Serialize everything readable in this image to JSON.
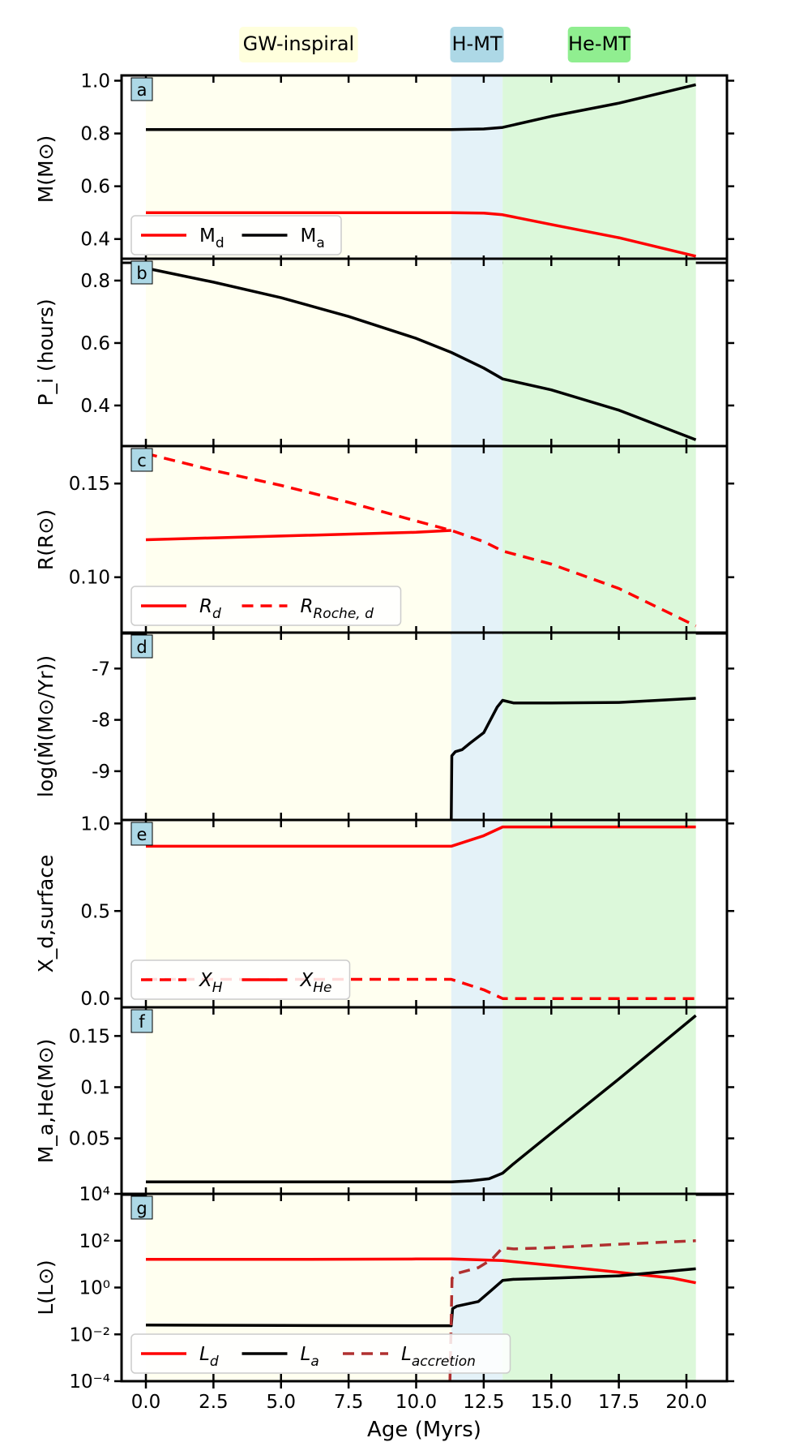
{
  "colors": {
    "red": "#ff0000",
    "black": "#000000",
    "brown": "#b03030",
    "gw_bg": "#fffff0",
    "hmt_bg": "#e4f2f8",
    "hemt_bg": "#dcf8da",
    "gw_label_bg": "#ffffdd",
    "hmt_label_bg": "#add8e6",
    "hemt_label_bg": "#90ee90",
    "panel_tag_bg": "#add8e6"
  },
  "phases": [
    {
      "label": "GW-inspiral",
      "x0": 0.0,
      "x1": 11.3,
      "color": "#fffff0",
      "label_color": "#ffffdd"
    },
    {
      "label": "H-MT",
      "x0": 11.3,
      "x1": 13.2,
      "color": "#e4f2f8",
      "label_color": "#add8e6"
    },
    {
      "label": "He-MT",
      "x0": 13.2,
      "x1": 20.35,
      "color": "#dcf8da",
      "label_color": "#90ee90"
    }
  ],
  "chart_data": {
    "type": "line",
    "xlabel": "Age (Myrs)",
    "xlim": [
      -0.9,
      21.5
    ],
    "xticks": [
      0.0,
      2.5,
      5.0,
      7.5,
      10.0,
      12.5,
      15.0,
      17.5,
      20.0
    ],
    "xtick_labels": [
      "0.0",
      "2.5",
      "5.0",
      "7.5",
      "10.0",
      "12.5",
      "15.0",
      "17.5",
      "20.0"
    ],
    "panels": [
      {
        "tag": "a",
        "ylabel": "M(M⊙)",
        "ylim": [
          0.31,
          1.02
        ],
        "yticks": [
          0.4,
          0.6,
          0.8,
          1.0
        ],
        "ytick_labels": [
          "0.4",
          "0.6",
          "0.8",
          "1.0"
        ],
        "series": [
          {
            "name": "Md",
            "color": "#ff0000",
            "dash": "solid",
            "x": [
              0,
              5,
              10,
              11.3,
              12.5,
              13.2,
              15,
              17.5,
              20.35
            ],
            "y": [
              0.5,
              0.5,
              0.5,
              0.5,
              0.498,
              0.492,
              0.455,
              0.405,
              0.335
            ]
          },
          {
            "name": "Ma",
            "color": "#000000",
            "dash": "solid",
            "x": [
              0,
              5,
              10,
              11.3,
              12.5,
              13.2,
              15,
              17.5,
              20.35
            ],
            "y": [
              0.815,
              0.815,
              0.815,
              0.815,
              0.817,
              0.823,
              0.865,
              0.915,
              0.985
            ]
          }
        ],
        "legend": [
          {
            "label": "M",
            "sub": "d",
            "color": "#ff0000",
            "dash": "solid"
          },
          {
            "label": "M",
            "sub": "a",
            "color": "#000000",
            "dash": "solid"
          }
        ]
      },
      {
        "tag": "b",
        "ylabel": "P_i (hours)",
        "ylim": [
          0.27,
          0.87
        ],
        "yticks": [
          0.4,
          0.6,
          0.8
        ],
        "ytick_labels": [
          "0.4",
          "0.6",
          "0.8"
        ],
        "series": [
          {
            "name": "Pi",
            "color": "#000000",
            "dash": "solid",
            "x": [
              0,
              2.5,
              5,
              7.5,
              10,
              11.3,
              12.5,
              13.2,
              15,
              17.5,
              20.35
            ],
            "y": [
              0.84,
              0.795,
              0.745,
              0.685,
              0.615,
              0.57,
              0.52,
              0.485,
              0.45,
              0.385,
              0.29
            ]
          }
        ]
      },
      {
        "tag": "c",
        "ylabel": "R(R⊙)",
        "ylim": [
          0.07,
          0.17
        ],
        "yticks": [
          0.1,
          0.15
        ],
        "ytick_labels": [
          "0.10",
          "0.15"
        ],
        "series": [
          {
            "name": "Rd",
            "color": "#ff0000",
            "dash": "solid",
            "x": [
              0,
              5,
              10,
              11.3
            ],
            "y": [
              0.12,
              0.122,
              0.124,
              0.125
            ]
          },
          {
            "name": "RRoche,d",
            "color": "#ff0000",
            "dash": "dashed",
            "x": [
              0,
              2.5,
              5,
              7.5,
              10,
              11.3,
              12.5,
              13.2,
              15,
              17.5,
              20.35
            ],
            "y": [
              0.166,
              0.157,
              0.149,
              0.14,
              0.13,
              0.125,
              0.119,
              0.114,
              0.107,
              0.094,
              0.074
            ]
          }
        ],
        "legend": [
          {
            "label": "R",
            "sub": "d",
            "color": "#ff0000",
            "dash": "solid"
          },
          {
            "label": "R",
            "sub": "Roche, d",
            "color": "#ff0000",
            "dash": "dashed"
          }
        ]
      },
      {
        "tag": "d",
        "ylabel": "log(Ṁ(M⊙/Yr))",
        "ylim": [
          -9.95,
          -6.3
        ],
        "yticks": [
          -9,
          -8,
          -7
        ],
        "ytick_labels": [
          "-9",
          "-8",
          "-7"
        ],
        "series": [
          {
            "name": "Mdot",
            "color": "#000000",
            "dash": "solid",
            "x": [
              11.3,
              11.32,
              11.45,
              11.7,
              12.0,
              12.5,
              13.0,
              13.2,
              13.6,
              15,
              17.5,
              20.35
            ],
            "y": [
              -9.95,
              -8.7,
              -8.62,
              -8.58,
              -8.45,
              -8.25,
              -7.75,
              -7.62,
              -7.67,
              -7.67,
              -7.66,
              -7.58
            ]
          }
        ]
      },
      {
        "tag": "e",
        "ylabel": "X_d,surface",
        "ylim": [
          -0.05,
          1.02
        ],
        "yticks": [
          0.0,
          0.5,
          1.0
        ],
        "ytick_labels": [
          "0.0",
          "0.5",
          "1.0"
        ],
        "series": [
          {
            "name": "XH",
            "color": "#ff0000",
            "dash": "dashed",
            "x": [
              0,
              10,
              11.3,
              12.5,
              13.2,
              20.35
            ],
            "y": [
              0.11,
              0.11,
              0.11,
              0.05,
              0.0,
              0.0
            ]
          },
          {
            "name": "XHe",
            "color": "#ff0000",
            "dash": "solid",
            "x": [
              0,
              10,
              11.3,
              12.5,
              13.2,
              20.35
            ],
            "y": [
              0.87,
              0.87,
              0.87,
              0.93,
              0.98,
              0.98
            ]
          }
        ],
        "legend": [
          {
            "label": "X",
            "sub": "H",
            "color": "#ff0000",
            "dash": "dashed"
          },
          {
            "label": "X",
            "sub": "He",
            "color": "#ff0000",
            "dash": "solid"
          }
        ]
      },
      {
        "tag": "f",
        "ylabel": "M_a,He(M⊙)",
        "ylim": [
          -0.005,
          0.178
        ],
        "yticks": [
          0.05,
          0.1,
          0.15
        ],
        "ytick_labels": [
          "0.05",
          "0.1",
          "0.15"
        ],
        "series": [
          {
            "name": "MaHe",
            "color": "#000000",
            "dash": "solid",
            "x": [
              0,
              5,
              10,
              11.3,
              12.0,
              12.7,
              13.2,
              13.6,
              15,
              17.5,
              20.35
            ],
            "y": [
              0.0075,
              0.0075,
              0.0075,
              0.0075,
              0.0085,
              0.0105,
              0.016,
              0.025,
              0.055,
              0.108,
              0.17
            ]
          }
        ]
      },
      {
        "tag": "g",
        "ylabel": "L(L⊙)",
        "yscale": "log",
        "ylim": [
          -4,
          4
        ],
        "yticks": [
          -4,
          -2,
          0,
          2,
          4
        ],
        "ytick_labels": [
          "10⁻⁴",
          "10⁻²",
          "10⁰",
          "10²",
          "10⁴"
        ],
        "series": [
          {
            "name": "Ld",
            "color": "#ff0000",
            "dash": "solid",
            "x": [
              0,
              5,
              10,
              11.3,
              13.2,
              15,
              17.5,
              19.5,
              20.35
            ],
            "y": [
              1.2,
              1.2,
              1.22,
              1.22,
              1.15,
              0.95,
              0.65,
              0.4,
              0.2
            ]
          },
          {
            "name": "La",
            "color": "#000000",
            "dash": "solid",
            "x": [
              0,
              5,
              10,
              11.3,
              11.35,
              11.5,
              12.3,
              12.8,
              13.2,
              13.6,
              15,
              17.5,
              20.35
            ],
            "y": [
              -1.6,
              -1.62,
              -1.63,
              -1.63,
              -0.9,
              -0.8,
              -0.6,
              -0.1,
              0.3,
              0.35,
              0.4,
              0.5,
              0.8
            ]
          },
          {
            "name": "Laccretion",
            "color": "#b03030",
            "dash": "dashed",
            "x": [
              11.25,
              11.33,
              11.5,
              12.3,
              12.8,
              13.2,
              13.6,
              15,
              17.5,
              20.35
            ],
            "y": [
              -4,
              0.4,
              0.6,
              0.85,
              1.2,
              1.7,
              1.65,
              1.7,
              1.85,
              2.0
            ]
          }
        ],
        "legend": [
          {
            "label": "L",
            "sub": "d",
            "color": "#ff0000",
            "dash": "solid"
          },
          {
            "label": "L",
            "sub": "a",
            "color": "#000000",
            "dash": "solid"
          },
          {
            "label": "L",
            "sub": "accretion",
            "color": "#b03030",
            "dash": "dashed"
          }
        ]
      }
    ]
  }
}
